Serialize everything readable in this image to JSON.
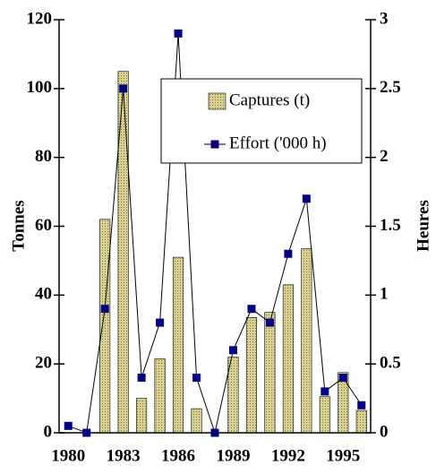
{
  "chart_data": {
    "type": "bar_line",
    "categories": [
      "1980",
      null,
      null,
      "1983",
      null,
      null,
      "1986",
      null,
      null,
      "1989",
      null,
      null,
      "1992",
      null,
      null,
      "1995",
      null
    ],
    "series": [
      {
        "name": "Captures (t)",
        "type": "bar",
        "color": "#c8c078",
        "values": [
          0,
          0,
          62,
          105,
          10,
          21.5,
          51,
          7,
          0,
          22,
          33.5,
          35,
          43,
          53.5,
          10.5,
          17.5,
          6.5
        ]
      },
      {
        "name": "Effort ('000 h)",
        "type": "line",
        "axis": "y2",
        "color": "#000080",
        "values": [
          0.05,
          0,
          0.9,
          2.5,
          0.4,
          0.8,
          2.9,
          0.4,
          0,
          0.6,
          0.9,
          0.8,
          1.3,
          1.7,
          0.3,
          0.4,
          0.2
        ]
      }
    ],
    "ylabel": "Tonnes",
    "y2label": "Heures",
    "ylim": [
      0,
      120
    ],
    "yticks": [
      0,
      20,
      40,
      60,
      80,
      100,
      120
    ],
    "y2lim": [
      0,
      3
    ],
    "y2ticks": [
      0,
      0.5,
      1,
      1.5,
      2,
      2.5,
      3
    ],
    "legend": "upper right"
  }
}
